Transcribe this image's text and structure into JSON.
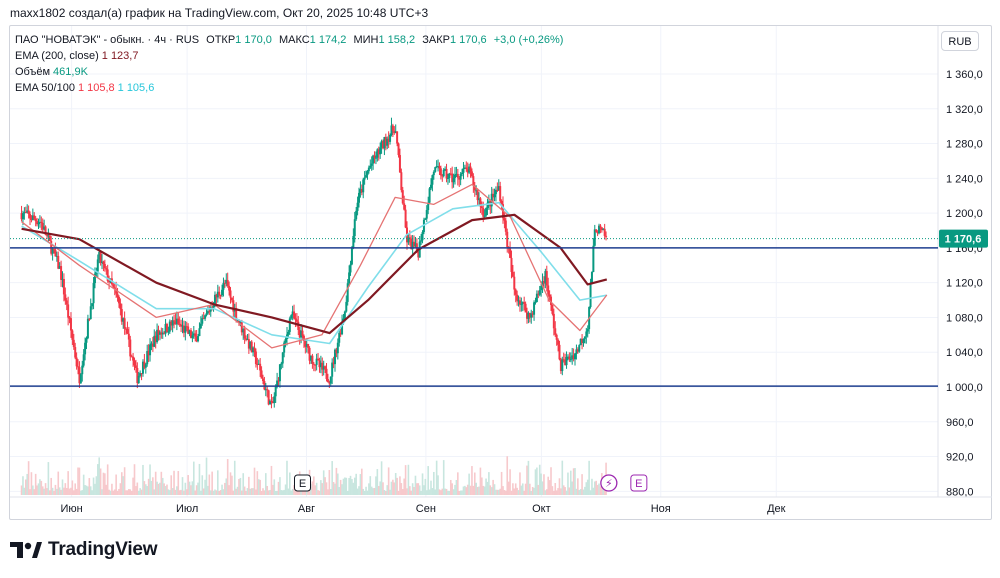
{
  "caption": "maxx1802 создал(а) график на TradingView.com, Окт 20, 2025 10:48 UTC+3",
  "legend": {
    "symbol": "ПАО \"НОВАТЭК\" - обыкн. · 4ч · RUS",
    "open_label": "ОТКР",
    "open": "1 170,0",
    "high_label": "МАКС",
    "high": "1 174,2",
    "low_label": "МИН",
    "low": "1 158,2",
    "close_label": "ЗАКР",
    "close": "1 170,6",
    "change": "+3,0 (+0,26%)",
    "ema200_label": "EMA (200, close)",
    "ema200_value": "1 123,7",
    "volume_label": "Объём",
    "volume_value": "461,9K",
    "ema50_100_label": "EMA 50/100",
    "ema50_value": "1 105,8",
    "ema100_value": "1 105,6"
  },
  "currency": "RUB",
  "logo_text": "TradingView",
  "colors": {
    "up": "#089981",
    "down": "#f23645",
    "ema50": "#e57373",
    "ema100": "#80deea",
    "ema200": "#801922",
    "level_line": "#2962ff",
    "axis_text": "#131722",
    "price_tag": "#089981"
  },
  "chart_data": {
    "type": "candlestick",
    "y_axis": {
      "ticks": [
        "1 360,0",
        "1 320,0",
        "1 280,0",
        "1 240,0",
        "1 200,0",
        "1 160,0",
        "1 120,0",
        "1 080,0",
        "1 040,0",
        "1 000,0",
        "960,0",
        "920,0",
        "880,0"
      ],
      "range": [
        870,
        1380
      ]
    },
    "x_axis": {
      "ticks": [
        "Июн",
        "Июл",
        "Авг",
        "Сен",
        "Окт",
        "Ноя",
        "Дек"
      ]
    },
    "current_price": {
      "label": "1 170,6",
      "value": 1170.6
    },
    "horizontal_levels": [
      1160,
      1001
    ],
    "price_path": [
      [
        "2025-05-19",
        1200
      ],
      [
        "2025-05-24",
        1190
      ],
      [
        "2025-05-29",
        1135
      ],
      [
        "2025-06-03",
        1010
      ],
      [
        "2025-06-08",
        1150
      ],
      [
        "2025-06-13",
        1100
      ],
      [
        "2025-06-18",
        1010
      ],
      [
        "2025-06-23",
        1060
      ],
      [
        "2025-06-28",
        1075
      ],
      [
        "2025-07-03",
        1055
      ],
      [
        "2025-07-08",
        1100
      ],
      [
        "2025-07-11",
        1120
      ],
      [
        "2025-07-14",
        1080
      ],
      [
        "2025-07-19",
        1030
      ],
      [
        "2025-07-23",
        975
      ],
      [
        "2025-07-28",
        1085
      ],
      [
        "2025-08-02",
        1035
      ],
      [
        "2025-08-07",
        1010
      ],
      [
        "2025-08-11",
        1090
      ],
      [
        "2025-08-14",
        1210
      ],
      [
        "2025-08-17",
        1250
      ],
      [
        "2025-08-21",
        1280
      ],
      [
        "2025-08-24",
        1300
      ],
      [
        "2025-08-27",
        1170
      ],
      [
        "2025-08-30",
        1155
      ],
      [
        "2025-09-03",
        1250
      ],
      [
        "2025-09-08",
        1240
      ],
      [
        "2025-09-12",
        1250
      ],
      [
        "2025-09-16",
        1200
      ],
      [
        "2025-09-20",
        1230
      ],
      [
        "2025-09-24",
        1110
      ],
      [
        "2025-09-28",
        1080
      ],
      [
        "2025-10-02",
        1130
      ],
      [
        "2025-10-06",
        1025
      ],
      [
        "2025-10-10",
        1040
      ],
      [
        "2025-10-13",
        1070
      ],
      [
        "2025-10-15",
        1185
      ],
      [
        "2025-10-18",
        1171
      ]
    ],
    "ema50": [
      [
        "2025-05-19",
        1190
      ],
      [
        "2025-06-03",
        1140
      ],
      [
        "2025-06-23",
        1080
      ],
      [
        "2025-07-08",
        1095
      ],
      [
        "2025-07-23",
        1045
      ],
      [
        "2025-08-05",
        1060
      ],
      [
        "2025-08-15",
        1140
      ],
      [
        "2025-08-24",
        1218
      ],
      [
        "2025-09-03",
        1210
      ],
      [
        "2025-09-13",
        1233
      ],
      [
        "2025-09-23",
        1195
      ],
      [
        "2025-10-03",
        1100
      ],
      [
        "2025-10-11",
        1065
      ],
      [
        "2025-10-18",
        1105.8
      ]
    ],
    "ema100": [
      [
        "2025-05-19",
        1185
      ],
      [
        "2025-06-03",
        1145
      ],
      [
        "2025-06-23",
        1090
      ],
      [
        "2025-07-08",
        1090
      ],
      [
        "2025-07-23",
        1060
      ],
      [
        "2025-08-07",
        1050
      ],
      [
        "2025-08-17",
        1115
      ],
      [
        "2025-08-27",
        1175
      ],
      [
        "2025-09-08",
        1205
      ],
      [
        "2025-09-20",
        1212
      ],
      [
        "2025-10-01",
        1155
      ],
      [
        "2025-10-11",
        1100
      ],
      [
        "2025-10-18",
        1105.6
      ]
    ],
    "ema200": [
      [
        "2025-05-19",
        1182
      ],
      [
        "2025-06-03",
        1170
      ],
      [
        "2025-06-23",
        1120
      ],
      [
        "2025-07-08",
        1095
      ],
      [
        "2025-07-23",
        1080
      ],
      [
        "2025-08-07",
        1062
      ],
      [
        "2025-08-17",
        1100
      ],
      [
        "2025-08-30",
        1158
      ],
      [
        "2025-09-13",
        1192
      ],
      [
        "2025-09-24",
        1198
      ],
      [
        "2025-10-06",
        1160
      ],
      [
        "2025-10-13",
        1118
      ],
      [
        "2025-10-18",
        1123.7
      ]
    ]
  }
}
